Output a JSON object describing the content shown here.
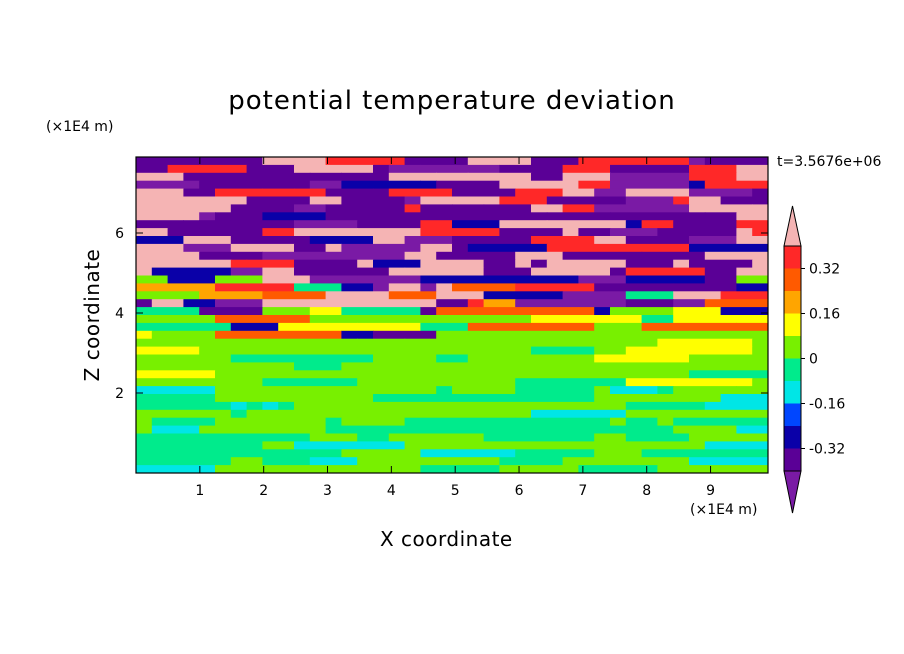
{
  "chart_data": {
    "type": "heatmap",
    "title": "potential temperature deviation",
    "xlabel": "X coordinate",
    "ylabel": "Z coordinate",
    "x_unit": "(×1E4 m)",
    "y_unit": "(×1E4 m)",
    "time_label": "t=3.5676e+06",
    "xlim": [
      0,
      9.9
    ],
    "ylim": [
      0,
      7.9
    ],
    "x_ticks": [
      1,
      2,
      3,
      4,
      5,
      6,
      7,
      8,
      9
    ],
    "y_ticks": [
      2,
      4,
      6
    ],
    "colorbar": {
      "colors": [
        "#7a1aa5",
        "#5a0096",
        "#0a00a8",
        "#0046ff",
        "#00e6e6",
        "#00eb8c",
        "#78f000",
        "#ffff00",
        "#ffa500",
        "#ff5a00",
        "#ff2828",
        "#f5b4b4"
      ],
      "tick_labels": [
        "-0.32",
        "-0.16",
        "0",
        "0.16",
        "0.32"
      ],
      "tick_values": [
        -0.32,
        -0.16,
        0,
        0.16,
        0.32
      ],
      "levels": [
        -0.4,
        -0.32,
        -0.24,
        -0.16,
        -0.08,
        0,
        0.08,
        0.16,
        0.24,
        0.32,
        0.4
      ],
      "extend": "both"
    }
  }
}
